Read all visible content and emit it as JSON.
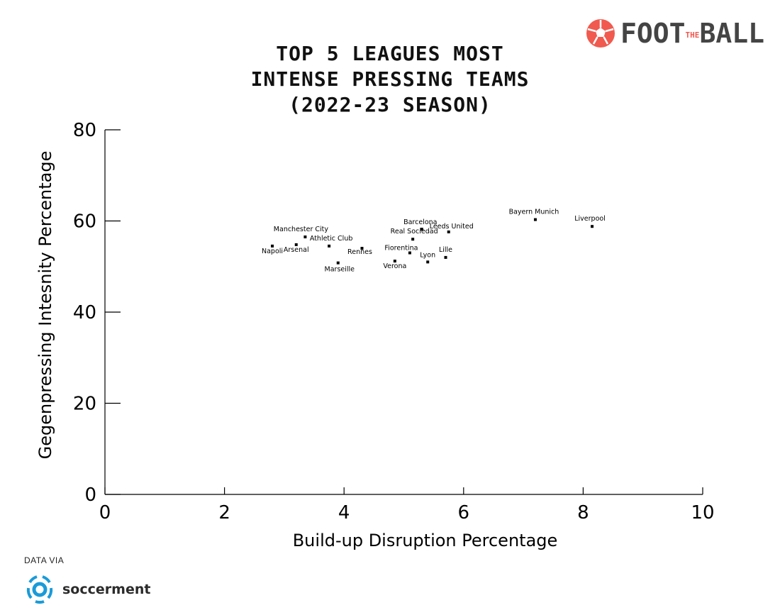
{
  "title_lines": [
    "TOP 5 LEAGUES MOST",
    "INTENSE PRESSING TEAMS",
    "(2022-23 SEASON)"
  ],
  "brand": {
    "prefix": "FOOT",
    "middle": "THE",
    "suffix": "BALL",
    "accent_color": "#f05a4f"
  },
  "credit": {
    "label": "DATA VIA",
    "name": "soccerment",
    "logo_color": "#1a9bd8"
  },
  "chart_data": {
    "type": "scatter",
    "xlabel": "Build-up Disruption Percentage",
    "ylabel": "Gegenpressing Intesnity Percentage",
    "xlim": [
      0,
      10
    ],
    "ylim": [
      0,
      80
    ],
    "xticks": [
      0,
      2,
      4,
      6,
      8,
      10
    ],
    "yticks": [
      0,
      20,
      40,
      60,
      80
    ],
    "grid": false,
    "highlight_color": "#d32f2f",
    "points": [
      {
        "label": "Napoli",
        "x": 2.8,
        "y": 54.5
      },
      {
        "label": "Arsenal",
        "x": 3.2,
        "y": 54.8
      },
      {
        "label": "Manchester City",
        "x": 3.35,
        "y": 56.5
      },
      {
        "label": "Athletic Club",
        "x": 3.75,
        "y": 54.5
      },
      {
        "label": "Marseille",
        "x": 3.9,
        "y": 50.8
      },
      {
        "label": "Rennes",
        "x": 4.3,
        "y": 54.0
      },
      {
        "label": "Verona",
        "x": 4.85,
        "y": 51.2
      },
      {
        "label": "Fiorentina",
        "x": 5.1,
        "y": 53.0
      },
      {
        "label": "Real Sociedad",
        "x": 5.15,
        "y": 56.0
      },
      {
        "label": "Barcelona",
        "x": 5.3,
        "y": 58.2,
        "highlight": true
      },
      {
        "label": "Lyon",
        "x": 5.4,
        "y": 51.0
      },
      {
        "label": "Lille",
        "x": 5.7,
        "y": 52.0
      },
      {
        "label": "Leeds United",
        "x": 5.75,
        "y": 57.6
      },
      {
        "label": "Bayern Munich",
        "x": 7.2,
        "y": 60.3
      },
      {
        "label": "Liverpool",
        "x": 8.15,
        "y": 58.8
      }
    ]
  }
}
